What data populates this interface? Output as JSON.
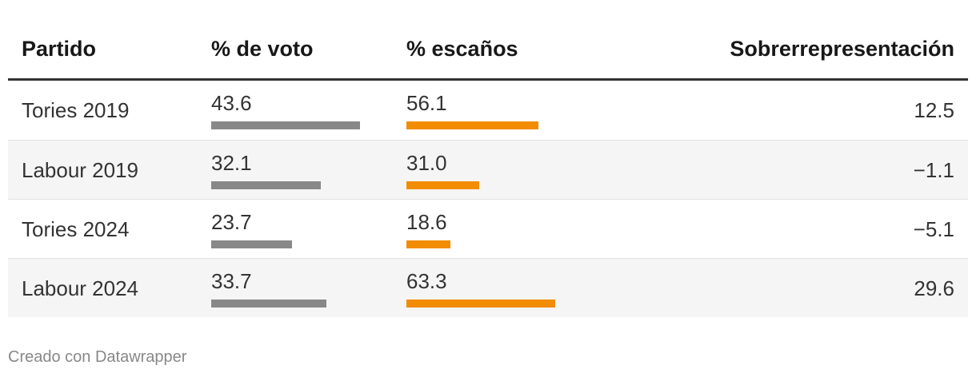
{
  "table": {
    "columns": [
      "Partido",
      "% de voto",
      "% escaños",
      "Sobrerrepresentación"
    ],
    "rows": [
      [
        "Tories 2019",
        43.6,
        56.1,
        12.5
      ],
      [
        "Labour 2019",
        32.1,
        {
          "value": 31,
          "label": "31.0"
        },
        {
          "value": -1.1,
          "label": "−1.1"
        }
      ],
      [
        "Tories 2024",
        23.7,
        18.6,
        {
          "value": -5.1,
          "label": "−5.1"
        }
      ],
      [
        "Labour 2024",
        33.7,
        63.3,
        29.6
      ]
    ],
    "bar_colors": [
      "#888888",
      "#f28c00"
    ]
  },
  "footer": "Creado con Datawrapper"
}
